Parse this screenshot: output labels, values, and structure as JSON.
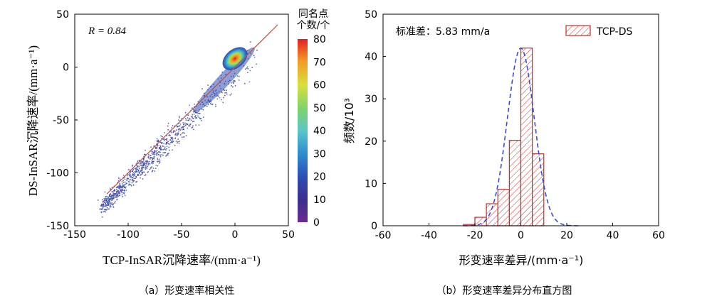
{
  "chart_data": [
    {
      "type": "scatter",
      "panel_caption": "（a）形变速率相关性",
      "xlabel": "TCP-InSAR沉降速率/(mm·a⁻¹)",
      "ylabel": "DS-InSAR沉降速率/(mm·a⁻¹)",
      "annotation": "R = 0.84",
      "xlim": [
        -150,
        50
      ],
      "ylim": [
        -150,
        50
      ],
      "xticks": [
        -150,
        -100,
        -50,
        0,
        50
      ],
      "yticks": [
        -150,
        -100,
        -50,
        0,
        50
      ],
      "fit_line": {
        "x": [
          -120,
          40
        ],
        "y": [
          -120,
          40
        ],
        "color": "#c0504d"
      },
      "colorbar": {
        "title_line1": "同名点",
        "title_line2": "个数/个",
        "range": [
          0,
          80
        ],
        "ticks": [
          0,
          10,
          20,
          30,
          40,
          50,
          60,
          70,
          80
        ]
      },
      "point_cloud": {
        "core_center": [
          0,
          8
        ],
        "upper_end": [
          22,
          15
        ],
        "lower_end": [
          -125,
          -133
        ]
      }
    },
    {
      "type": "bar",
      "panel_caption": "（b）形变速率差异分布直方图",
      "xlabel": "形变速率差异/(mm·a⁻¹)",
      "ylabel": "频数/10³",
      "annotation": "标准差：5.83 mm/a",
      "legend": "TCP-DS",
      "legend_position": "top-right",
      "xlim": [
        -60,
        60
      ],
      "ylim": [
        0,
        50
      ],
      "xticks": [
        -60,
        -40,
        -20,
        0,
        20,
        40,
        60
      ],
      "yticks": [
        0,
        10,
        20,
        30,
        40,
        50
      ],
      "bin_edges": [
        -25,
        -20,
        -15,
        -10,
        -5,
        0,
        5,
        10
      ],
      "values": [
        0.3,
        2.0,
        5.2,
        8.6,
        20.2,
        42.0,
        17.0
      ],
      "normal_fit": {
        "mean": 0,
        "sd": 5.83,
        "peak": 42
      },
      "bar_color": "#c0302b",
      "curve_color": "#3b4ccf"
    }
  ]
}
